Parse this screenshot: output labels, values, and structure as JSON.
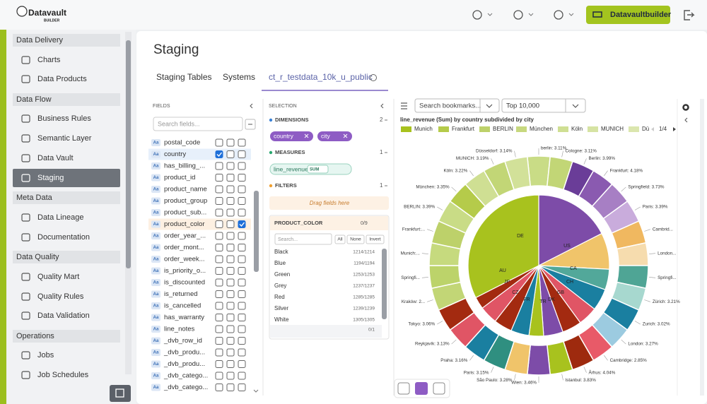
{
  "header": {
    "logo": "Datavault",
    "logo_sub": "BUILDER",
    "button": "Datavaultbuilder"
  },
  "sidebar": {
    "sections": [
      {
        "title": "Data Delivery",
        "items": [
          "Charts",
          "Data Products"
        ]
      },
      {
        "title": "Data Flow",
        "items": [
          "Business Rules",
          "Semantic Layer",
          "Data Vault",
          "Staging"
        ]
      },
      {
        "title": "Meta Data",
        "items": [
          "Data Lineage",
          "Documentation"
        ]
      },
      {
        "title": "Data Quality",
        "items": [
          "Quality Mart",
          "Quality Rules",
          "Data Validation"
        ]
      },
      {
        "title": "Operations",
        "items": [
          "Jobs",
          "Job Schedules"
        ]
      }
    ],
    "active": [
      1,
      3
    ]
  },
  "page": {
    "title": "Staging",
    "tabs": [
      "Staging Tables",
      "Systems",
      "ct_r_testdata_10k_u_public"
    ],
    "active_tab": 2
  },
  "fields": {
    "header": "FIELDS",
    "search_placeholder": "Search fields...",
    "icon": "Aa",
    "items": [
      {
        "name": "postal_code",
        "checks": [
          false,
          false,
          false
        ]
      },
      {
        "name": "country",
        "checks": [
          true,
          false,
          false
        ]
      },
      {
        "name": "has_billing_...",
        "checks": [
          false,
          false,
          false
        ]
      },
      {
        "name": "product_id",
        "checks": [
          false,
          false,
          false
        ]
      },
      {
        "name": "product_name",
        "checks": [
          false,
          false,
          false
        ]
      },
      {
        "name": "product_group",
        "checks": [
          false,
          false,
          false
        ]
      },
      {
        "name": "product_sub...",
        "checks": [
          false,
          false,
          false
        ]
      },
      {
        "name": "product_color",
        "checks": [
          false,
          false,
          true
        ]
      },
      {
        "name": "order_year_...",
        "checks": [
          false,
          false,
          false
        ]
      },
      {
        "name": "order_mont...",
        "checks": [
          false,
          false,
          false
        ]
      },
      {
        "name": "order_week...",
        "checks": [
          false,
          false,
          false
        ]
      },
      {
        "name": "is_priority_o...",
        "checks": [
          false,
          false,
          false
        ]
      },
      {
        "name": "is_discounted",
        "checks": [
          false,
          false,
          false
        ]
      },
      {
        "name": "is_returned",
        "checks": [
          false,
          false,
          false
        ]
      },
      {
        "name": "is_cancelled",
        "checks": [
          false,
          false,
          false
        ]
      },
      {
        "name": "has_warranty",
        "checks": [
          false,
          false,
          false
        ]
      },
      {
        "name": "line_notes",
        "checks": [
          false,
          false,
          false
        ]
      },
      {
        "name": "_dvb_row_id",
        "checks": [
          false,
          false,
          false
        ]
      },
      {
        "name": "_dvb_produ...",
        "checks": [
          false,
          false,
          false
        ]
      },
      {
        "name": "_dvb_produ...",
        "checks": [
          false,
          false,
          false
        ]
      },
      {
        "name": "_dvb_catego...",
        "checks": [
          false,
          false,
          false
        ]
      },
      {
        "name": "_dvb_catego...",
        "checks": [
          false,
          false,
          false
        ]
      }
    ]
  },
  "selection": {
    "header": "SELECTION",
    "dimensions": {
      "title": "DIMENSIONS",
      "count": 2,
      "chips": [
        "country",
        "city"
      ]
    },
    "measures": {
      "title": "MEASURES",
      "count": 1,
      "chips": [
        {
          "name": "line_revenue",
          "agg": "SUM"
        }
      ]
    },
    "filters": {
      "title": "FILTERS",
      "count": 1,
      "drop_hint": "Drag fields here"
    }
  },
  "filter": {
    "title": "PRODUCT_COLOR",
    "selected": "0/9",
    "search_placeholder": "Search...",
    "buttons": [
      "All",
      "None",
      "Invert"
    ],
    "rows": [
      {
        "name": "Black",
        "count": "1214/1214"
      },
      {
        "name": "Blue",
        "count": "1194/1194"
      },
      {
        "name": "Green",
        "count": "1253/1253"
      },
      {
        "name": "Grey",
        "count": "1237/1237"
      },
      {
        "name": "Red",
        "count": "1285/1285"
      },
      {
        "name": "Silver",
        "count": "1239/1239"
      },
      {
        "name": "White",
        "count": "1305/1305"
      }
    ],
    "footer": "0/1"
  },
  "chart": {
    "bookmark_placeholder": "Search bookmarks...",
    "limit": "Top 10,000",
    "title": "line_revenue (Sum) by country subdivided by city",
    "legend": [
      "Munich",
      "Frankfurt",
      "BERLIN",
      "München",
      "Köln",
      "MUNICH",
      "Dü"
    ],
    "legend_page": "1/4",
    "inner_labels": [
      "DE",
      "US",
      "CA",
      "CH",
      "GB",
      "DK",
      "TR",
      "FR",
      "CZ",
      "JP",
      "AU"
    ],
    "outer_labels": [
      "berlin: 3.11%",
      "Cologne: 3.11%",
      "Berlin: 3.99%",
      "Frankfurt: 4.18%",
      "Springfield: 3.73%",
      "Paris: 3.39%",
      "Cambrid...",
      "London...",
      "Springfi...",
      "Zürich: 3.21%",
      "Zurich: 3.02%",
      "London: 3.27%",
      "Cambridge: 2.85%",
      "Århus: 4.04%",
      "Istanbul: 3.83%",
      "Wien: 3.46%",
      "São Paulo: 3.28%",
      "Paris: 3.15%",
      "Praha: 3.16%",
      "Reykjavík: 3.13%",
      "Tokyo: 3.06%",
      "Kraków: 2...",
      "Springfi...",
      "Munich:...",
      "Frankfurt:...",
      "BERLIN: 3.39%",
      "München: 3.35%",
      "Köln: 3.22%",
      "MUNICH: 3.19%",
      "Düsseldorf: 3.14%"
    ]
  }
}
